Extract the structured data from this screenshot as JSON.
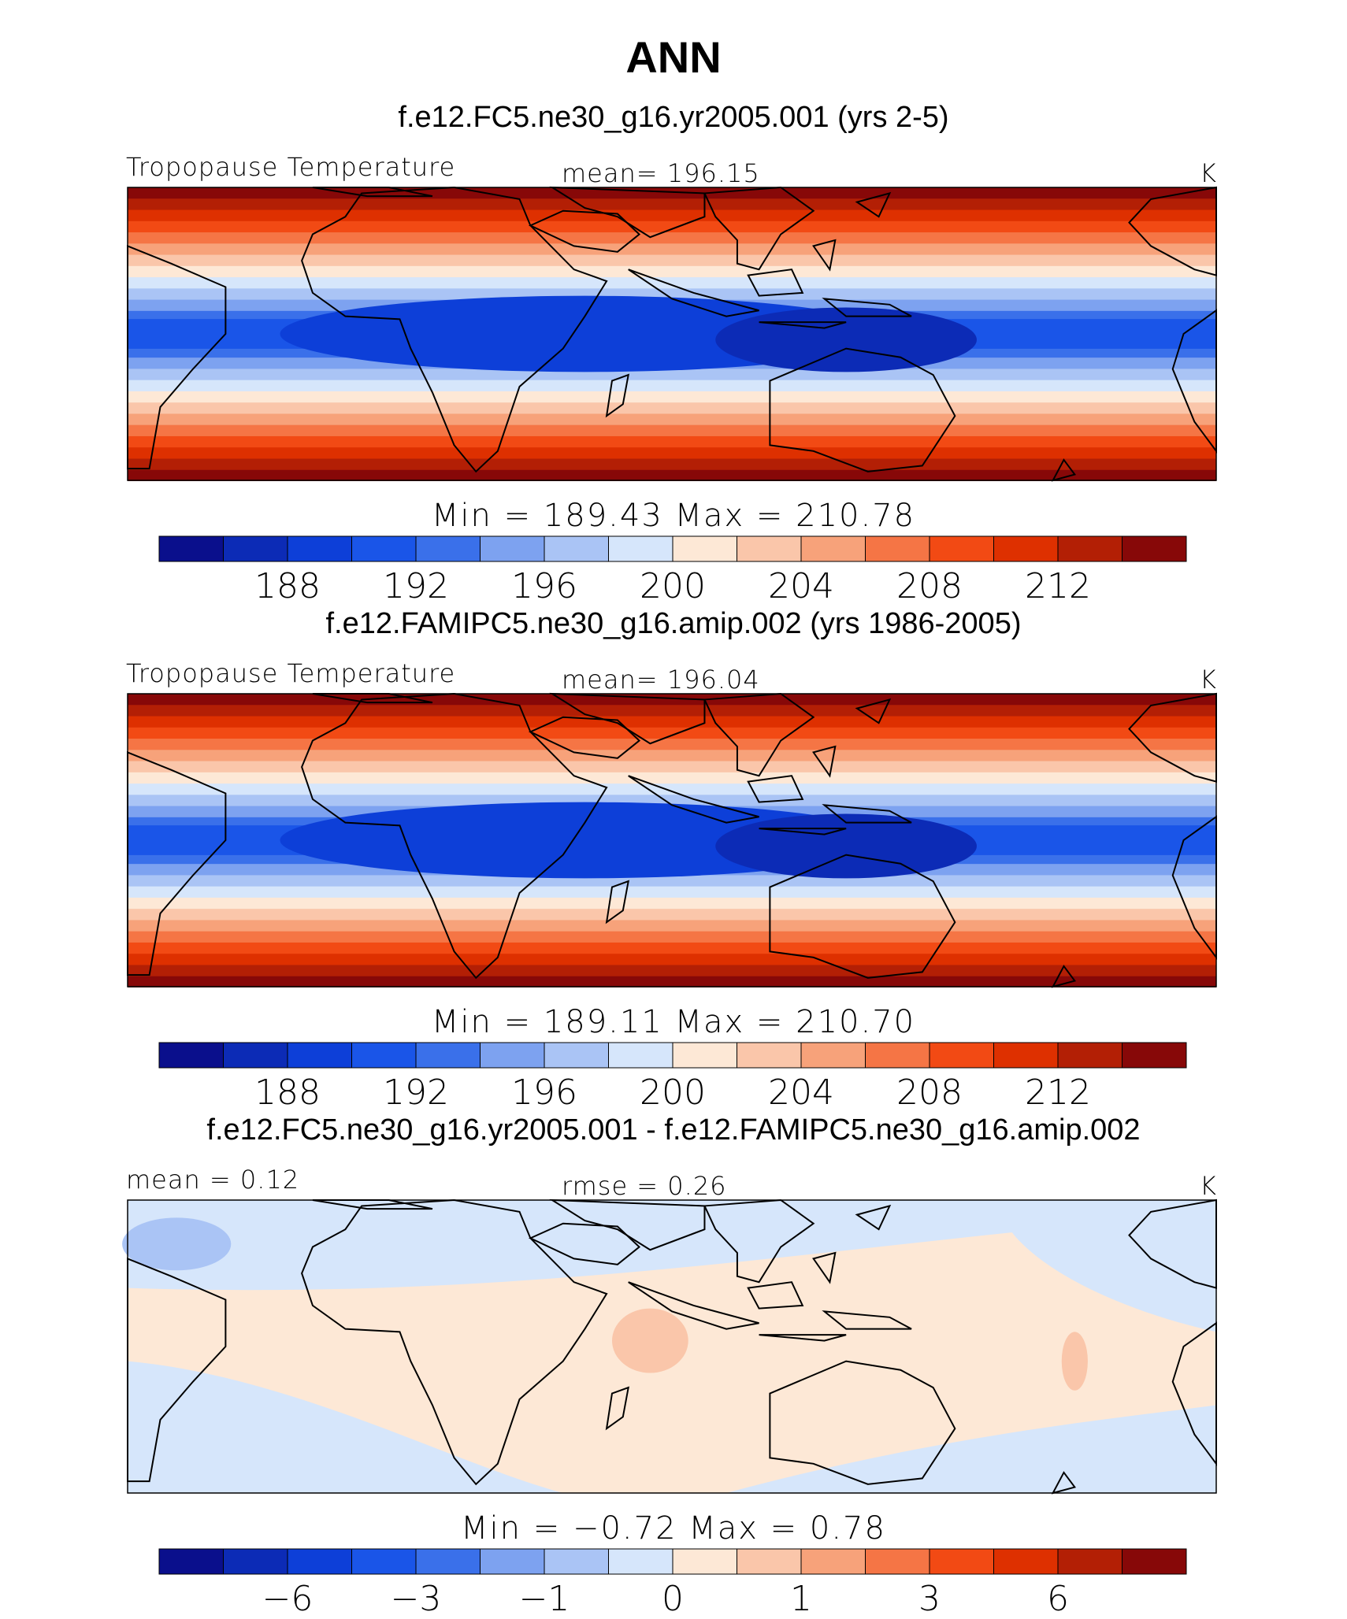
{
  "chart_data": {
    "type": "heatmap",
    "title": "ANN",
    "unit": "K",
    "panels": [
      {
        "id": "top",
        "subtitle": "f.e12.FC5.ne30_g16.yr2005.001 (yrs 2-5)",
        "left_label": "Tropopause Temperature",
        "center_label": "mean=  196.15",
        "unit": "K",
        "min": 189.43,
        "max": 210.78,
        "min_max_text": "Min  =  189.43  Max  =  210.78",
        "colorbar_levels": [
          186,
          188,
          190,
          192,
          194,
          196,
          198,
          200,
          202,
          204,
          206,
          208,
          210,
          212,
          214
        ],
        "colorbar_ticks": [
          "188",
          "192",
          "196",
          "200",
          "204",
          "208",
          "212"
        ]
      },
      {
        "id": "middle",
        "subtitle": "f.e12.FAMIPC5.ne30_g16.amip.002 (yrs 1986-2005)",
        "left_label": "Tropopause Temperature",
        "center_label": "mean=  196.04",
        "unit": "K",
        "min": 189.11,
        "max": 210.7,
        "min_max_text": "Min  =  189.11  Max  =  210.70",
        "colorbar_levels": [
          186,
          188,
          190,
          192,
          194,
          196,
          198,
          200,
          202,
          204,
          206,
          208,
          210,
          212,
          214
        ],
        "colorbar_ticks": [
          "188",
          "192",
          "196",
          "200",
          "204",
          "208",
          "212"
        ]
      },
      {
        "id": "bottom",
        "subtitle": "f.e12.FC5.ne30_g16.yr2005.001 - f.e12.FAMIPC5.ne30_g16.amip.002",
        "left_label": "mean  =    0.12",
        "center_label": "rmse  =    0.26",
        "unit": "K",
        "min": -0.72,
        "max": 0.78,
        "min_max_text": "Min  =    −0.72  Max  =      0.78",
        "colorbar_levels": [
          -8,
          -6,
          -4,
          -3,
          -2,
          -1,
          -0.5,
          0,
          0.5,
          1,
          2,
          3,
          4,
          6,
          8
        ],
        "colorbar_ticks": [
          "−6",
          "−3",
          "−1",
          "0",
          "1",
          "3",
          "6"
        ]
      }
    ],
    "colorbar_colors": [
      "#0a0f8c",
      "#0c2bb6",
      "#0d3fd8",
      "#1a55e8",
      "#3a70ea",
      "#7da2f0",
      "#aac4f5",
      "#d6e6fb",
      "#fde8d6",
      "#fac6aa",
      "#f7a27a",
      "#f57545",
      "#f24a14",
      "#de3000",
      "#b31f05",
      "#870808"
    ]
  }
}
